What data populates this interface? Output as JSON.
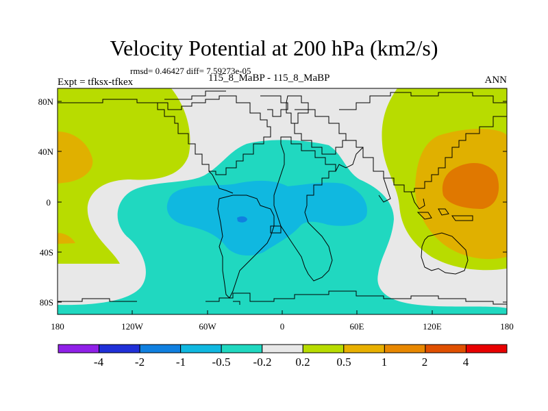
{
  "title": "Velocity Potential at 200 hPa (km2/s)",
  "stats": "rmsd= 0.46427 diff= 7.59273e-05",
  "experiment": "Expt = tfksx-tfkex",
  "case": "115_8_MaBP - 115_8_MaBP",
  "season": "ANN",
  "lat_ticks": [
    "80N",
    "40N",
    "0",
    "40S",
    "80S"
  ],
  "lon_ticks": [
    "180",
    "120W",
    "60W",
    "0",
    "60E",
    "120E",
    "180"
  ],
  "colorbar": {
    "colors": [
      "#9020e8",
      "#2030d8",
      "#1080e0",
      "#10b8e0",
      "#20d8c0",
      "#e8e8e8",
      "#b8dc00",
      "#e8b000",
      "#e88800",
      "#e05000",
      "#e80000"
    ],
    "labels": [
      "-4",
      "-2",
      "-1",
      "-0.5",
      "-0.2",
      "0.2",
      "0.5",
      "1",
      "2",
      "4"
    ]
  },
  "field_colors": {
    "background": "#e8e8e8",
    "positive_05": "#b8dc00",
    "positive_1": "#e0b000",
    "positive_2": "#e07800",
    "negative_02": "#20d8c0",
    "negative_05": "#10b8e0",
    "negative_1": "#1080e0"
  }
}
